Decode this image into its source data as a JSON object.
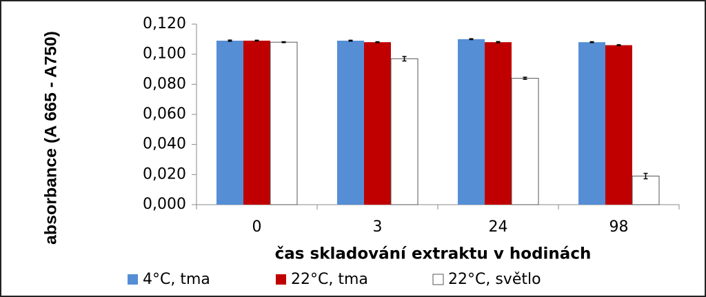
{
  "chart_data": {
    "type": "bar",
    "y_label": "absorbance (A 665 - A750)",
    "x_label": "čas skladování extraktu v hodinách",
    "categories": [
      "0",
      "3",
      "24",
      "98"
    ],
    "series": [
      {
        "name": "4°C, tma",
        "color": "#558ed5",
        "values": [
          0.109,
          0.109,
          0.11,
          0.108
        ],
        "errors": [
          0.0004,
          0.0003,
          0.0003,
          0.0003
        ]
      },
      {
        "name": "22°C, tma",
        "color": "#c00000",
        "values": [
          0.109,
          0.108,
          0.108,
          0.106
        ],
        "errors": [
          0.0003,
          0.0003,
          0.0004,
          0.0003
        ]
      },
      {
        "name": "22°C, světlo",
        "color": "#ffffff",
        "values": [
          0.108,
          0.097,
          0.084,
          0.019
        ],
        "errors": [
          0.0003,
          0.0015,
          0.0007,
          0.0018
        ]
      }
    ],
    "ylim": [
      0,
      0.12
    ],
    "yticks": [
      {
        "value": 0,
        "label": "0,000"
      },
      {
        "value": 0.02,
        "label": "0,020"
      },
      {
        "value": 0.04,
        "label": "0,040"
      },
      {
        "value": 0.06,
        "label": "0,060"
      },
      {
        "value": 0.08,
        "label": "0,080"
      },
      {
        "value": 0.1,
        "label": "0,100"
      },
      {
        "value": 0.12,
        "label": "0,120"
      }
    ],
    "grid": false
  }
}
